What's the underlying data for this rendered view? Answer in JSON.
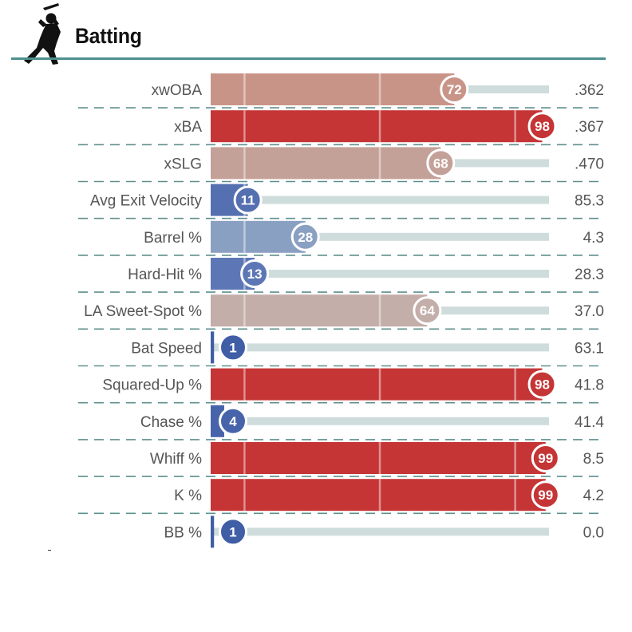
{
  "header": {
    "title": "Batting",
    "icon": "batter-silhouette-icon"
  },
  "colors": {
    "rule": "#4f8f8f",
    "track": "#cfdcdc",
    "separator": "#5d8f8f",
    "text": "#555555"
  },
  "chart_data": {
    "type": "bar",
    "title": "Batting",
    "xlim": [
      0,
      100
    ],
    "reference_lines": [
      10,
      50,
      90
    ],
    "grid": false,
    "categories": [
      "xwOBA",
      "xBA",
      "xSLG",
      "Avg Exit Velocity",
      "Barrel %",
      "Hard-Hit %",
      "LA Sweet-Spot %",
      "Bat Speed",
      "Squared-Up %",
      "Chase %",
      "Whiff %",
      "K %",
      "BB %"
    ],
    "percentiles": [
      72,
      98,
      68,
      11,
      28,
      13,
      64,
      1,
      98,
      4,
      99,
      99,
      1
    ],
    "values": [
      ".362",
      ".367",
      ".470",
      "85.3",
      "4.3",
      "28.3",
      "37.0",
      "63.1",
      "41.8",
      "41.4",
      "8.5",
      "4.2",
      "0.0"
    ],
    "bar_colors": [
      "#c99488",
      "#c53535",
      "#c4a198",
      "#5570b0",
      "#8aa0c2",
      "#5d77b6",
      "#c3aea9",
      "#3f5ea6",
      "#c53535",
      "#4764ab",
      "#c53535",
      "#c53535",
      "#3f5ea6"
    ]
  }
}
